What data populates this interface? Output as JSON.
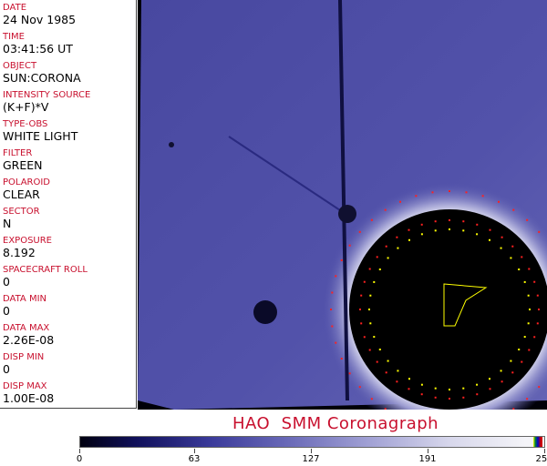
{
  "header_fields": [
    {
      "label": "DATE",
      "value": "24 Nov 1985"
    },
    {
      "label": "TIME",
      "value": "03:41:56 UT"
    },
    {
      "label": "OBJECT",
      "value": "SUN:CORONA"
    },
    {
      "label": "INTENSITY SOURCE",
      "value": "(K+F)*V"
    },
    {
      "label": "TYPE-OBS",
      "value": "WHITE LIGHT"
    },
    {
      "label": "FILTER",
      "value": "GREEN"
    },
    {
      "label": "POLAROID",
      "value": "CLEAR"
    },
    {
      "label": "SECTOR",
      "value": "N"
    },
    {
      "label": "EXPOSURE",
      "value": "8.192"
    },
    {
      "label": "SPACECRAFT ROLL",
      "value": "0"
    },
    {
      "label": "DATA MIN",
      "value": "0"
    },
    {
      "label": "DATA MAX",
      "value": "2.26E-08"
    },
    {
      "label": "DISP MIN",
      "value": "0"
    },
    {
      "label": "DISP MAX",
      "value": "1.00E-08"
    }
  ],
  "title": "HAO  SMM Coronagraph",
  "colorbar": {
    "ticks": [
      "0",
      "63",
      "127",
      "191",
      "255"
    ],
    "min": 0,
    "max": 255,
    "colors": {
      "low": "#000010",
      "mid": "#4a4aa8",
      "high": "#f4f4f8"
    }
  },
  "colors": {
    "label": "#c8102e",
    "overlay_red": "#ff2020",
    "overlay_yellow": "#ffff00"
  }
}
